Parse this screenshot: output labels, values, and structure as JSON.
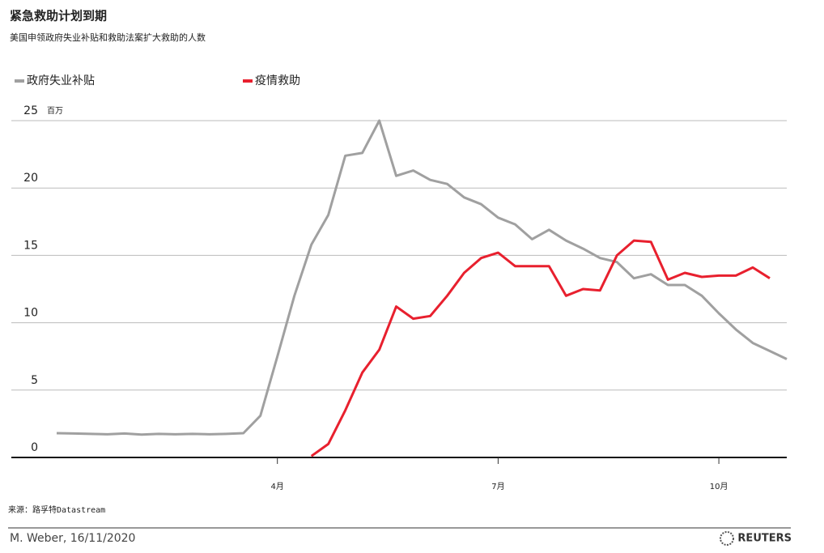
{
  "chart_data": {
    "type": "line",
    "title": "紧急救助计划到期",
    "subtitle": "美国申领政府失业补贴和救助法案扩大救助的人数",
    "y_unit": "百万",
    "categories": [
      null,
      null,
      null,
      null,
      null,
      null,
      null,
      null,
      null,
      null,
      null,
      null,
      null,
      "4月",
      null,
      null,
      null,
      null,
      null,
      null,
      null,
      null,
      null,
      null,
      null,
      null,
      "7月",
      null,
      null,
      null,
      null,
      null,
      null,
      null,
      null,
      null,
      null,
      null,
      null,
      "10月",
      null,
      null,
      null,
      null
    ],
    "series": [
      {
        "name": "政府失业补贴",
        "color": "#a0a0a0",
        "values": [
          1.8,
          1.78,
          1.75,
          1.72,
          1.78,
          1.7,
          1.75,
          1.72,
          1.75,
          1.72,
          1.75,
          1.8,
          3.1,
          7.5,
          12,
          15.8,
          18,
          22.4,
          22.6,
          25,
          20.9,
          21.3,
          20.6,
          20.3,
          19.3,
          18.8,
          17.8,
          17.3,
          16.2,
          16.9,
          16.1,
          15.5,
          14.8,
          14.5,
          13.3,
          13.6,
          12.8,
          12.8,
          12,
          10.7,
          9.5,
          8.5,
          7.9,
          7.3
        ]
      },
      {
        "name": "疫情救助",
        "color": "#e8202e",
        "values": [
          null,
          null,
          null,
          null,
          null,
          null,
          null,
          null,
          null,
          null,
          null,
          null,
          null,
          null,
          null,
          0.1,
          1.0,
          3.5,
          6.3,
          8,
          11.2,
          10.3,
          10.5,
          12,
          13.7,
          14.8,
          15.2,
          14.2,
          14.2,
          14.2,
          12,
          12.5,
          12.4,
          15,
          16.1,
          16,
          13.2,
          13.7,
          13.4,
          13.5,
          13.5,
          14.1,
          13.3,
          null
        ]
      }
    ],
    "ylim": [
      0,
      25
    ],
    "yticks": [
      0,
      5,
      10,
      15,
      20,
      25
    ],
    "grid": true,
    "source": "来源：路孚特Datastream",
    "credit": "M. Weber, 16/11/2020",
    "brand": "REUTERS"
  }
}
